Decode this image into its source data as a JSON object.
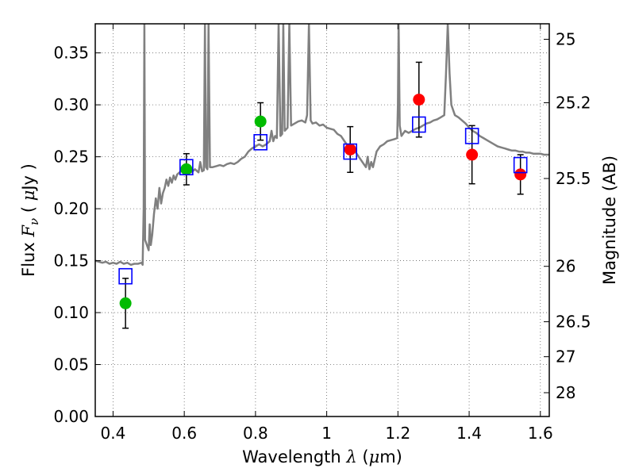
{
  "chart_data": {
    "type": "scatter",
    "xlabel": {
      "prefix": "Wavelength  ",
      "var": "λ",
      "unit_open": " (",
      "unit_mu": "μ",
      "unit_close": "m)"
    },
    "ylabel": {
      "prefix": "Flux  ",
      "var": "F",
      "sub": "ν",
      "unit_open": "  ( ",
      "unit_mu": "μ",
      "unit_close": "Jy )"
    },
    "y2label": "Magnitude (AB)",
    "xlim": [
      0.35,
      1.625
    ],
    "ylim": [
      0,
      0.378
    ],
    "grid": true,
    "x_ticks": [
      0.4,
      0.6,
      0.8,
      1.0,
      1.2,
      1.4,
      1.6
    ],
    "x_tick_labels": [
      "0.4",
      "0.6",
      "0.8",
      "1",
      "1.2",
      "1.4",
      "1.6"
    ],
    "y_ticks": [
      0.0,
      0.05,
      0.1,
      0.15,
      0.2,
      0.25,
      0.3,
      0.35
    ],
    "y_tick_labels": [
      "0.00",
      "0.05",
      "0.10",
      "0.15",
      "0.20",
      "0.25",
      "0.30",
      "0.35"
    ],
    "y2_ticks": [
      {
        "mag": 25,
        "label": "25"
      },
      {
        "mag": 25.2,
        "label": "25.2"
      },
      {
        "mag": 25.5,
        "label": "25.5"
      },
      {
        "mag": 26,
        "label": "26"
      },
      {
        "mag": 26.5,
        "label": "26.5"
      },
      {
        "mag": 27,
        "label": "27"
      },
      {
        "mag": 28,
        "label": "28"
      }
    ],
    "series": [
      {
        "color": "#00bb00",
        "marker": "circle",
        "points": [
          {
            "x": 0.435,
            "y": 0.109,
            "yerr": 0.024
          },
          {
            "x": 0.606,
            "y": 0.238,
            "yerr": 0.015
          },
          {
            "x": 0.814,
            "y": 0.284,
            "yerr": 0.018
          }
        ]
      },
      {
        "color": "#ff0000",
        "marker": "circle",
        "points": [
          {
            "x": 1.066,
            "y": 0.257,
            "yerr": 0.022
          },
          {
            "x": 1.259,
            "y": 0.305,
            "yerr": 0.036
          },
          {
            "x": 1.408,
            "y": 0.252,
            "yerr": 0.028
          },
          {
            "x": 1.544,
            "y": 0.233,
            "yerr": 0.019
          }
        ]
      },
      {
        "color": "#0000ff",
        "marker": "open-square",
        "points": [
          {
            "x": 0.435,
            "y": 0.135
          },
          {
            "x": 0.606,
            "y": 0.24
          },
          {
            "x": 0.814,
            "y": 0.264
          },
          {
            "x": 1.066,
            "y": 0.255
          },
          {
            "x": 1.259,
            "y": 0.281
          },
          {
            "x": 1.408,
            "y": 0.27
          },
          {
            "x": 1.544,
            "y": 0.242
          }
        ]
      }
    ],
    "spectrum": {
      "color": "#808080",
      "points": [
        [
          0.35,
          0.15
        ],
        [
          0.36,
          0.149
        ],
        [
          0.37,
          0.148
        ],
        [
          0.38,
          0.149
        ],
        [
          0.39,
          0.147
        ],
        [
          0.4,
          0.148
        ],
        [
          0.41,
          0.147
        ],
        [
          0.42,
          0.149
        ],
        [
          0.43,
          0.147
        ],
        [
          0.44,
          0.148
        ],
        [
          0.45,
          0.146
        ],
        [
          0.46,
          0.147
        ],
        [
          0.47,
          0.147
        ],
        [
          0.48,
          0.148
        ],
        [
          0.483,
          0.146
        ],
        [
          0.486,
          0.2
        ],
        [
          0.488,
          0.378
        ],
        [
          0.49,
          0.17
        ],
        [
          0.495,
          0.165
        ],
        [
          0.5,
          0.16
        ],
        [
          0.503,
          0.185
        ],
        [
          0.506,
          0.165
        ],
        [
          0.51,
          0.175
        ],
        [
          0.515,
          0.195
        ],
        [
          0.52,
          0.21
        ],
        [
          0.525,
          0.2
        ],
        [
          0.53,
          0.22
        ],
        [
          0.535,
          0.205
        ],
        [
          0.54,
          0.215
        ],
        [
          0.545,
          0.22
        ],
        [
          0.55,
          0.228
        ],
        [
          0.555,
          0.222
        ],
        [
          0.56,
          0.23
        ],
        [
          0.565,
          0.225
        ],
        [
          0.57,
          0.232
        ],
        [
          0.575,
          0.228
        ],
        [
          0.58,
          0.233
        ],
        [
          0.59,
          0.236
        ],
        [
          0.6,
          0.24
        ],
        [
          0.61,
          0.237
        ],
        [
          0.62,
          0.235
        ],
        [
          0.63,
          0.238
        ],
        [
          0.64,
          0.235
        ],
        [
          0.645,
          0.245
        ],
        [
          0.65,
          0.236
        ],
        [
          0.655,
          0.237
        ],
        [
          0.658,
          0.378
        ],
        [
          0.661,
          0.24
        ],
        [
          0.665,
          0.238
        ],
        [
          0.668,
          0.378
        ],
        [
          0.672,
          0.24
        ],
        [
          0.68,
          0.24
        ],
        [
          0.69,
          0.241
        ],
        [
          0.7,
          0.242
        ],
        [
          0.71,
          0.241
        ],
        [
          0.72,
          0.243
        ],
        [
          0.73,
          0.244
        ],
        [
          0.74,
          0.243
        ],
        [
          0.75,
          0.245
        ],
        [
          0.76,
          0.248
        ],
        [
          0.77,
          0.25
        ],
        [
          0.78,
          0.255
        ],
        [
          0.79,
          0.258
        ],
        [
          0.8,
          0.26
        ],
        [
          0.81,
          0.262
        ],
        [
          0.82,
          0.26
        ],
        [
          0.83,
          0.262
        ],
        [
          0.84,
          0.265
        ],
        [
          0.845,
          0.275
        ],
        [
          0.85,
          0.265
        ],
        [
          0.855,
          0.27
        ],
        [
          0.86,
          0.268
        ],
        [
          0.865,
          0.378
        ],
        [
          0.87,
          0.27
        ],
        [
          0.875,
          0.272
        ],
        [
          0.878,
          0.378
        ],
        [
          0.882,
          0.275
        ],
        [
          0.89,
          0.278
        ],
        [
          0.895,
          0.378
        ],
        [
          0.9,
          0.28
        ],
        [
          0.91,
          0.282
        ],
        [
          0.92,
          0.284
        ],
        [
          0.93,
          0.285
        ],
        [
          0.94,
          0.283
        ],
        [
          0.945,
          0.29
        ],
        [
          0.95,
          0.378
        ],
        [
          0.955,
          0.285
        ],
        [
          0.96,
          0.282
        ],
        [
          0.97,
          0.283
        ],
        [
          0.98,
          0.28
        ],
        [
          0.99,
          0.281
        ],
        [
          1.0,
          0.278
        ],
        [
          1.01,
          0.277
        ],
        [
          1.02,
          0.276
        ],
        [
          1.03,
          0.272
        ],
        [
          1.04,
          0.27
        ],
        [
          1.05,
          0.265
        ],
        [
          1.06,
          0.26
        ],
        [
          1.07,
          0.258
        ],
        [
          1.08,
          0.255
        ],
        [
          1.09,
          0.25
        ],
        [
          1.1,
          0.245
        ],
        [
          1.11,
          0.24
        ],
        [
          1.115,
          0.25
        ],
        [
          1.12,
          0.238
        ],
        [
          1.125,
          0.245
        ],
        [
          1.13,
          0.24
        ],
        [
          1.14,
          0.255
        ],
        [
          1.15,
          0.26
        ],
        [
          1.16,
          0.262
        ],
        [
          1.17,
          0.265
        ],
        [
          1.18,
          0.266
        ],
        [
          1.19,
          0.267
        ],
        [
          1.198,
          0.268
        ],
        [
          1.2,
          0.3
        ],
        [
          1.202,
          0.378
        ],
        [
          1.205,
          0.28
        ],
        [
          1.21,
          0.27
        ],
        [
          1.22,
          0.275
        ],
        [
          1.23,
          0.273
        ],
        [
          1.24,
          0.275
        ],
        [
          1.25,
          0.277
        ],
        [
          1.26,
          0.278
        ],
        [
          1.27,
          0.28
        ],
        [
          1.28,
          0.282
        ],
        [
          1.29,
          0.283
        ],
        [
          1.3,
          0.285
        ],
        [
          1.31,
          0.286
        ],
        [
          1.32,
          0.288
        ],
        [
          1.33,
          0.29
        ],
        [
          1.335,
          0.33
        ],
        [
          1.34,
          0.378
        ],
        [
          1.345,
          0.33
        ],
        [
          1.35,
          0.3
        ],
        [
          1.36,
          0.29
        ],
        [
          1.37,
          0.288
        ],
        [
          1.38,
          0.285
        ],
        [
          1.39,
          0.282
        ],
        [
          1.4,
          0.278
        ],
        [
          1.41,
          0.275
        ],
        [
          1.42,
          0.273
        ],
        [
          1.43,
          0.27
        ],
        [
          1.44,
          0.268
        ],
        [
          1.45,
          0.266
        ],
        [
          1.46,
          0.264
        ],
        [
          1.47,
          0.262
        ],
        [
          1.48,
          0.26
        ],
        [
          1.49,
          0.259
        ],
        [
          1.5,
          0.258
        ],
        [
          1.51,
          0.257
        ],
        [
          1.52,
          0.256
        ],
        [
          1.53,
          0.256
        ],
        [
          1.54,
          0.255
        ],
        [
          1.55,
          0.255
        ],
        [
          1.56,
          0.254
        ],
        [
          1.57,
          0.254
        ],
        [
          1.58,
          0.253
        ],
        [
          1.59,
          0.253
        ],
        [
          1.6,
          0.253
        ],
        [
          1.61,
          0.252
        ],
        [
          1.625,
          0.252
        ]
      ]
    }
  }
}
